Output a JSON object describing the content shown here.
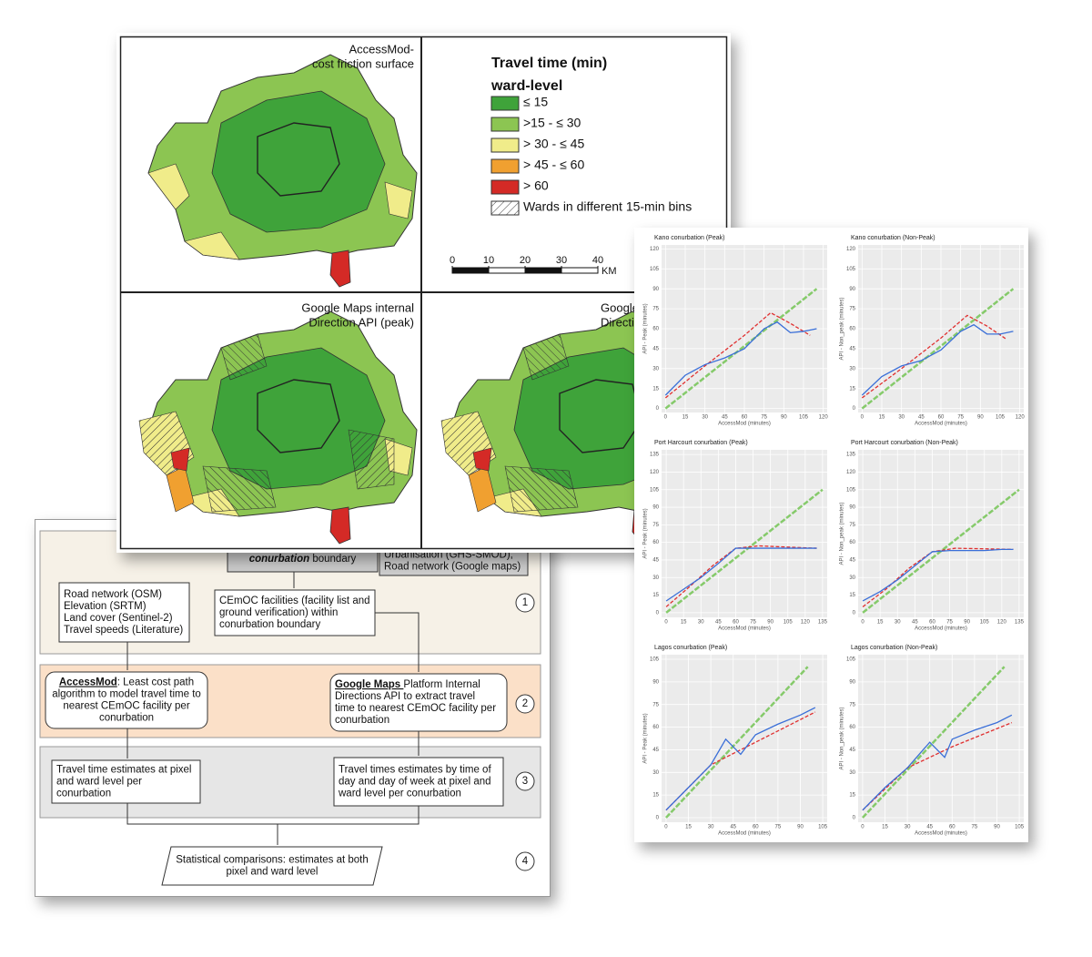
{
  "flowchart": {
    "boxes": [
      {
        "lines": [
          {
            "bold": "conurbation",
            "rest": " boundary"
          }
        ]
      },
      {
        "lines": [
          "Urbanisation (GHS-SMOD),",
          "Road network (Google maps)"
        ]
      },
      {
        "lines": [
          "Road network (OSM)",
          "Elevation (SRTM)",
          "Land cover (Sentinel-2)",
          "Travel speeds (Literature)"
        ]
      },
      {
        "lines": [
          "CEmOC facilities (facility list and",
          "ground verification) within",
          "conurbation boundary"
        ]
      },
      {
        "lines": [
          {
            "bold": "AccessMod",
            "rest": ": Least cost path"
          },
          "algorithm to model travel time to",
          "nearest CEmOC facility per",
          "conurbation"
        ]
      },
      {
        "lines": [
          {
            "bold": "Google Maps ",
            "rest": "Platform Internal"
          },
          "Directions API to extract travel",
          "time to nearest CEmOC facility per",
          "conurbation"
        ]
      },
      {
        "lines": [
          "Travel time estimates at pixel",
          "and ward level per",
          "conurbation"
        ]
      },
      {
        "lines": [
          "Travel times estimates by time of",
          "day and day of week at pixel and",
          "ward level per conurbation"
        ]
      },
      {
        "lines": [
          "Statistical comparisons: estimates at both",
          "pixel and ward level"
        ]
      }
    ],
    "steps": [
      "1",
      "2",
      "3",
      "4"
    ]
  },
  "map_figure": {
    "panel_titles": [
      [
        "AccessMod-",
        "cost friction surface"
      ],
      [
        "Google Maps internal",
        "Direction API (peak)"
      ],
      [
        "Google",
        "Direction"
      ]
    ],
    "legend": {
      "title": [
        "Travel time (min)",
        "ward-level"
      ],
      "items": [
        {
          "label": "≤ 15",
          "color": "#3fa33a"
        },
        {
          "label": ">15 - ≤ 30",
          "color": "#8cc552"
        },
        {
          "label": "> 30 - ≤ 45",
          "color": "#f0ec8a"
        },
        {
          "label": "> 45 - ≤ 60",
          "color": "#f0a030"
        },
        {
          "label": "> 60",
          "color": "#d42a26"
        },
        {
          "label": "Wards in different 15-min bins",
          "color": "hatch"
        }
      ]
    },
    "scale": {
      "ticks": [
        0,
        10,
        20,
        30,
        40
      ],
      "unit": "KM"
    }
  },
  "scatter_figure": {
    "panels": [
      {
        "title": "Kano conurbation (Peak)",
        "xlabel": "AccessMod (minutes)",
        "ylabel": "API - Peak (minutes)",
        "xlim": [
          -3,
          123
        ],
        "ylim": [
          -3,
          123
        ],
        "xticks": [
          0,
          15,
          30,
          45,
          60,
          75,
          90,
          105,
          120
        ],
        "yticks": [
          0,
          15,
          30,
          45,
          60,
          75,
          90,
          105,
          120
        ],
        "series": [
          {
            "color": "#6cc24a",
            "x": [
              0,
              115
            ],
            "values": [
              0,
              90
            ]
          },
          {
            "color": "#e03030",
            "x": [
              0,
              30,
              60,
              80,
              95,
              110
            ],
            "values": [
              8,
              32,
              55,
              72,
              64,
              55
            ]
          },
          {
            "color": "#3a6fd8",
            "x": [
              0,
              15,
              30,
              45,
              60,
              75,
              85,
              95,
              105,
              115
            ],
            "values": [
              10,
              25,
              33,
              38,
              45,
              60,
              65,
              57,
              58,
              60
            ]
          }
        ]
      },
      {
        "title": "Kano conurbation (Non-Peak)",
        "xlabel": "AccessMod (minutes)",
        "ylabel": "API - Non_peak (minutes)",
        "xlim": [
          -3,
          123
        ],
        "ylim": [
          -3,
          123
        ],
        "xticks": [
          0,
          15,
          30,
          45,
          60,
          75,
          90,
          105,
          120
        ],
        "yticks": [
          0,
          15,
          30,
          45,
          60,
          75,
          90,
          105,
          120
        ],
        "series": [
          {
            "color": "#6cc24a",
            "x": [
              0,
              115
            ],
            "values": [
              0,
              90
            ]
          },
          {
            "color": "#e03030",
            "x": [
              0,
              30,
              60,
              80,
              95,
              110
            ],
            "values": [
              8,
              30,
              53,
              70,
              62,
              52
            ]
          },
          {
            "color": "#3a6fd8",
            "x": [
              0,
              15,
              30,
              45,
              60,
              75,
              85,
              95,
              105,
              115
            ],
            "values": [
              10,
              24,
              32,
              36,
              44,
              58,
              63,
              56,
              56,
              58
            ]
          }
        ]
      },
      {
        "title": "Port Harcourt conurbation (Peak)",
        "xlabel": "AccessMod (minutes)",
        "ylabel": "API - Peak (minutes)",
        "xlim": [
          -4,
          139
        ],
        "ylim": [
          -4,
          139
        ],
        "xticks": [
          0,
          15,
          30,
          45,
          60,
          75,
          90,
          105,
          120,
          135
        ],
        "yticks": [
          0,
          15,
          30,
          45,
          60,
          75,
          90,
          105,
          120,
          135
        ],
        "series": [
          {
            "color": "#6cc24a",
            "x": [
              0,
              135
            ],
            "values": [
              0,
              105
            ]
          },
          {
            "color": "#e03030",
            "x": [
              0,
              20,
              40,
              60,
              80,
              130
            ],
            "values": [
              5,
              22,
              40,
              55,
              57,
              55
            ]
          },
          {
            "color": "#3a6fd8",
            "x": [
              0,
              15,
              30,
              45,
              60,
              75,
              90,
              105,
              120,
              130
            ],
            "values": [
              10,
              20,
              30,
              42,
              55,
              55,
              55,
              55,
              55,
              55
            ]
          }
        ]
      },
      {
        "title": "Port Harcourt conurbation (Non-Peak)",
        "xlabel": "AccessMod (minutes)",
        "ylabel": "API - Non_peak (minutes)",
        "xlim": [
          -4,
          139
        ],
        "ylim": [
          -4,
          139
        ],
        "xticks": [
          0,
          15,
          30,
          45,
          60,
          75,
          90,
          105,
          120,
          135
        ],
        "yticks": [
          0,
          15,
          30,
          45,
          60,
          75,
          90,
          105,
          120,
          135
        ],
        "series": [
          {
            "color": "#6cc24a",
            "x": [
              0,
              135
            ],
            "values": [
              0,
              105
            ]
          },
          {
            "color": "#e03030",
            "x": [
              0,
              20,
              40,
              60,
              80,
              130
            ],
            "values": [
              5,
              20,
              38,
              52,
              55,
              54
            ]
          },
          {
            "color": "#3a6fd8",
            "x": [
              0,
              15,
              30,
              45,
              60,
              75,
              90,
              105,
              120,
              130
            ],
            "values": [
              10,
              18,
              28,
              40,
              52,
              53,
              53,
              53,
              54,
              54
            ]
          }
        ]
      },
      {
        "title": "Lagos conurbation (Peak)",
        "xlabel": "AccessMod (minutes)",
        "ylabel": "API - Peak (minutes)",
        "xlim": [
          -3,
          108
        ],
        "ylim": [
          -3,
          108
        ],
        "xticks": [
          0,
          15,
          30,
          45,
          60,
          75,
          90,
          105
        ],
        "yticks": [
          0,
          15,
          30,
          45,
          60,
          75,
          90,
          105
        ],
        "series": [
          {
            "color": "#6cc24a",
            "x": [
              0,
              95
            ],
            "values": [
              0,
              100
            ]
          },
          {
            "color": "#e03030",
            "x": [
              0,
              30,
              60,
              100
            ],
            "values": [
              5,
              35,
              50,
              70
            ]
          },
          {
            "color": "#3a6fd8",
            "x": [
              0,
              15,
              30,
              40,
              50,
              60,
              75,
              90,
              100
            ],
            "values": [
              5,
              20,
              35,
              52,
              42,
              55,
              62,
              68,
              73
            ]
          }
        ]
      },
      {
        "title": "Lagos conurbation (Non-Peak)",
        "xlabel": "AccessMod (minutes)",
        "ylabel": "API - Non_peak (minutes)",
        "xlim": [
          -3,
          108
        ],
        "ylim": [
          -3,
          108
        ],
        "xticks": [
          0,
          15,
          30,
          45,
          60,
          75,
          90,
          105
        ],
        "yticks": [
          0,
          15,
          30,
          45,
          60,
          75,
          90,
          105
        ],
        "series": [
          {
            "color": "#6cc24a",
            "x": [
              0,
              95
            ],
            "values": [
              0,
              100
            ]
          },
          {
            "color": "#e03030",
            "x": [
              0,
              30,
              60,
              100
            ],
            "values": [
              5,
              33,
              47,
              63
            ]
          },
          {
            "color": "#3a6fd8",
            "x": [
              0,
              15,
              30,
              45,
              55,
              60,
              75,
              90,
              100
            ],
            "values": [
              5,
              20,
              33,
              50,
              40,
              52,
              58,
              63,
              68
            ]
          }
        ]
      }
    ]
  }
}
